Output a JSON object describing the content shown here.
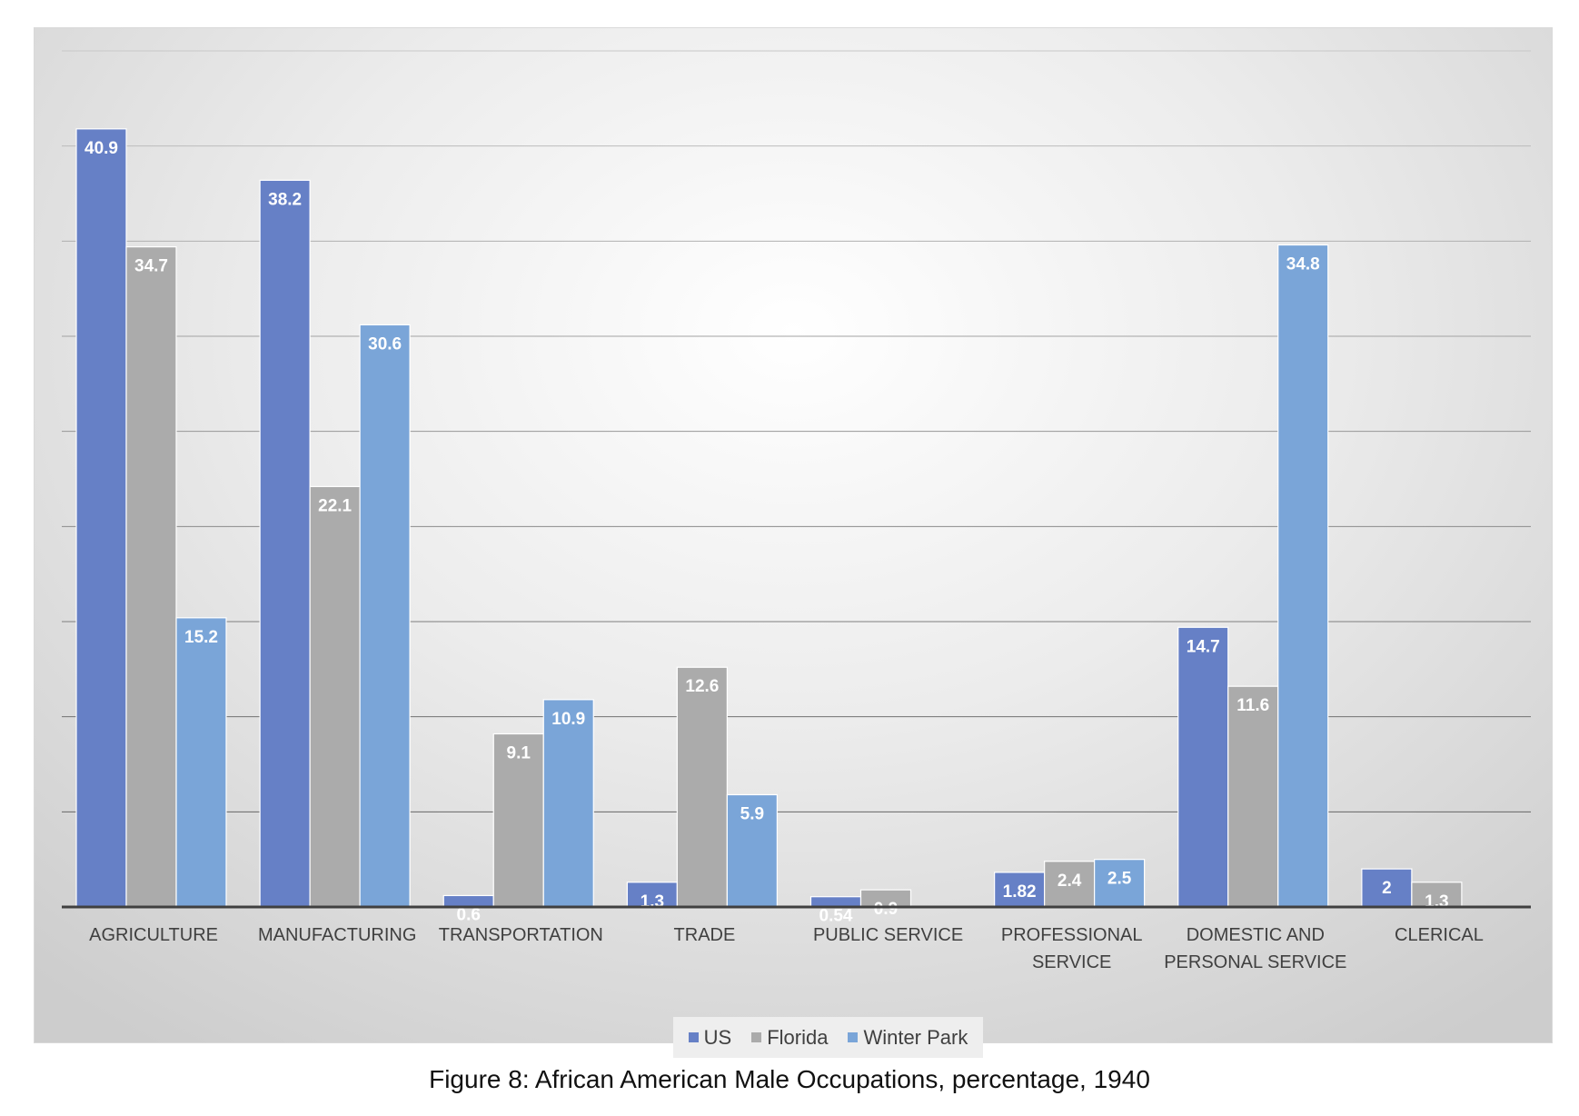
{
  "chart_data": {
    "type": "bar",
    "categories": [
      "AGRICULTURE",
      "MANUFACTURING",
      "TRANSPORTATION",
      "TRADE",
      "PUBLIC SERVICE",
      "PROFESSIONAL SERVICE",
      "DOMESTIC AND PERSONAL SERVICE",
      "CLERICAL"
    ],
    "category_lines": [
      [
        "AGRICULTURE"
      ],
      [
        "MANUFACTURING"
      ],
      [
        "TRANSPORTATION"
      ],
      [
        "TRADE"
      ],
      [
        "PUBLIC SERVICE"
      ],
      [
        "PROFESSIONAL",
        "SERVICE"
      ],
      [
        "DOMESTIC AND",
        "PERSONAL SERVICE"
      ],
      [
        "CLERICAL"
      ]
    ],
    "series": [
      {
        "name": "US",
        "color": "#6680c6",
        "values": [
          40.9,
          38.2,
          0.6,
          1.3,
          0.54,
          1.82,
          14.7,
          2
        ]
      },
      {
        "name": "Florida",
        "color": "#ababab",
        "values": [
          34.7,
          22.1,
          9.1,
          12.6,
          0.9,
          2.4,
          11.6,
          1.3
        ]
      },
      {
        "name": "Winter Park",
        "color": "#7aa5d8",
        "values": [
          15.2,
          30.6,
          10.9,
          5.9,
          null,
          2.5,
          34.8,
          null
        ]
      }
    ],
    "ylim": [
      0,
      45
    ],
    "ytick_step": 5,
    "grid": true,
    "legend_position": "bottom",
    "data_labels": true,
    "caption": "Figure 8: African American Male Occupations, percentage, 1940"
  }
}
